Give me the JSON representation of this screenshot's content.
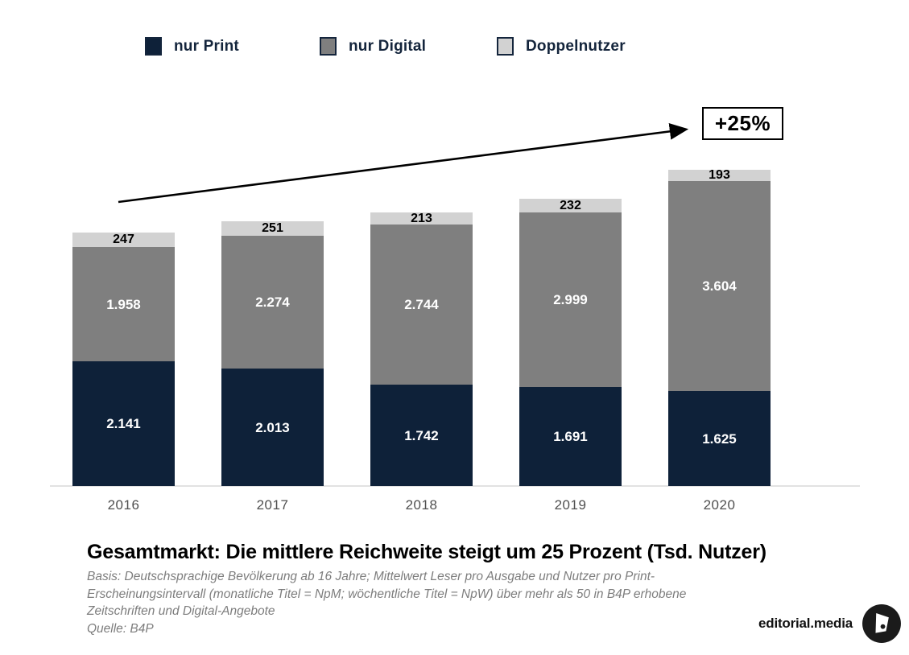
{
  "legend": {
    "items": [
      {
        "label": "nur Print",
        "color": "#0e2139"
      },
      {
        "label": "nur Digital",
        "color": "#7f7f7f"
      },
      {
        "label": "Doppelnutzer",
        "color": "#d2d2d2"
      }
    ]
  },
  "annotation": {
    "label": "+25%"
  },
  "chart_data": {
    "type": "bar",
    "stacked": true,
    "title": "Gesamtmarkt: Die mittlere Reichweite steigt um 25 Prozent (Tsd. Nutzer)",
    "unit": "Tsd. Nutzer",
    "categories": [
      "2016",
      "2017",
      "2018",
      "2019",
      "2020"
    ],
    "series": [
      {
        "name": "nur Print",
        "color": "#0e2139",
        "label_color": "#ffffff",
        "values": [
          2141,
          2013,
          1742,
          1691,
          1625
        ],
        "display_values": [
          "2.141",
          "2.013",
          "1.742",
          "1.691",
          "1.625"
        ]
      },
      {
        "name": "nur Digital",
        "color": "#7f7f7f",
        "label_color": "#ffffff",
        "values": [
          1958,
          2274,
          2744,
          2999,
          3604
        ],
        "display_values": [
          "1.958",
          "2.274",
          "2.744",
          "2.999",
          "3.604"
        ]
      },
      {
        "name": "Doppelnutzer",
        "color": "#d2d2d2",
        "label_color": "#000000",
        "values": [
          247,
          251,
          213,
          232,
          193
        ],
        "display_values": [
          "247",
          "251",
          "213",
          "232",
          "193"
        ]
      }
    ],
    "totals": [
      4346,
      4538,
      4699,
      4922,
      5422
    ],
    "annotation": "+25%",
    "legend_position": "top",
    "grid": false,
    "xlabel": "",
    "ylabel": ""
  },
  "footer": {
    "title": "Gesamtmarkt: Die mittlere Reichweite steigt um 25 Prozent (Tsd. Nutzer)",
    "notes": [
      "Basis: Deutschsprachige Bevölkerung ab 16 Jahre; Mittelwert Leser pro Ausgabe und Nutzer pro Print-",
      "Erscheinungsintervall (monatliche Titel = NpM; wöchentliche Titel = NpW) über mehr als 50 in B4P erhobene",
      "Zeitschriften und Digital-Angebote",
      "Quelle: B4P"
    ],
    "brand": "editorial.media"
  }
}
